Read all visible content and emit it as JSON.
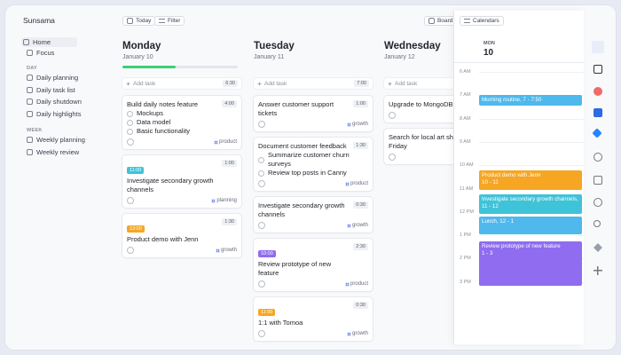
{
  "sidebar": {
    "workspace": "Sunsama",
    "nav": [
      "Home",
      "Focus"
    ],
    "sections": [
      {
        "heading": "DAY",
        "items": [
          "Daily planning",
          "Daily task list",
          "Daily shutdown",
          "Daily highlights"
        ]
      },
      {
        "heading": "WEEK",
        "items": [
          "Weekly planning",
          "Weekly review"
        ]
      }
    ]
  },
  "toolbar": {
    "today": "Today",
    "filter": "Filter",
    "board": "Board",
    "calendars": "Calendars"
  },
  "columns": [
    {
      "day": "Monday",
      "date": "January 10",
      "add_task": "Add task",
      "planned": "6:30",
      "tasks": [
        {
          "title": "Build daily notes feature",
          "duration": "4:00",
          "subtasks": [
            "Mockups",
            "Data model",
            "Basic functionality"
          ],
          "tag": "product"
        },
        {
          "start": "11:00",
          "badge_color": "#3fc3d8",
          "title": "Investigate secondary growth channels",
          "duration": "1:00",
          "tag": "planning"
        },
        {
          "start": "13:00",
          "badge_color": "#f6a623",
          "title": "Product demo with Jenn",
          "duration": "1:30",
          "tag": "growth"
        }
      ]
    },
    {
      "day": "Tuesday",
      "date": "January 11",
      "add_task": "Add task",
      "planned": "7:00",
      "tasks": [
        {
          "title": "Answer customer support tickets",
          "duration": "1:00",
          "tag": "growth"
        },
        {
          "title": "Document customer feedback",
          "duration": "1:30",
          "subtasks": [
            "Summarize customer churn surveys",
            "Review top posts in Canny"
          ],
          "tag": "product"
        },
        {
          "title": "Investigate secondary growth channels",
          "duration": "0:30",
          "tag": "growth"
        },
        {
          "start": "10:00",
          "badge_color": "#8f6cf0",
          "title": "Review prototype of new feature",
          "duration": "2:30",
          "tag": "product"
        },
        {
          "start": "11:00",
          "badge_color": "#f6a623",
          "title": "1:1 with Tomoa",
          "duration": "0:30",
          "tag": "growth"
        }
      ]
    },
    {
      "day": "Wednesday",
      "date": "January 12",
      "add_task": "Add task",
      "tasks": [
        {
          "title": "Upgrade to MongoDB"
        },
        {
          "title": "Search for local art shows First Friday"
        }
      ]
    }
  ],
  "calendar": {
    "weekday": "MON",
    "day": "10",
    "hours": [
      "6 AM",
      "7 AM",
      "8 AM",
      "9 AM",
      "10 AM",
      "11 AM",
      "12 PM",
      "1 PM",
      "2 PM",
      "3 PM"
    ],
    "events": [
      {
        "title": "Morning routine, 7 - 7:50"
      },
      {
        "title": "Product demo with Jenn",
        "time": "10 - 11"
      },
      {
        "title": "Investigate secondary growth channels, 11 - 12"
      },
      {
        "title": "Lunch, 12 - 1"
      },
      {
        "title": "Review prototype of new feature",
        "time": "1 - 3"
      }
    ]
  }
}
